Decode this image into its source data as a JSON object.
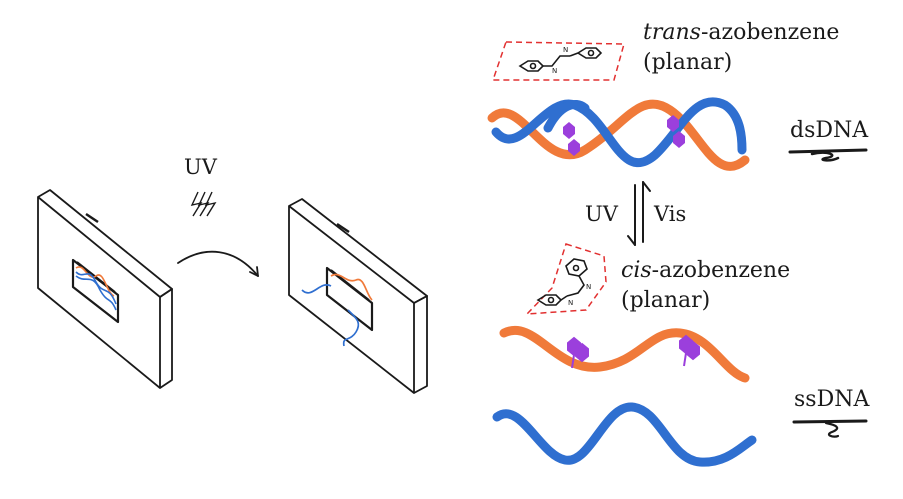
{
  "labels": {
    "uv_left": "UV",
    "trans_prefix": "trans",
    "trans_suffix": "-azobenzene",
    "trans_sub": "(planar)",
    "dsdna": "dsDNA",
    "uv_mid": "UV",
    "vis_mid": "Vis",
    "cis_prefix": "cis",
    "cis_suffix": "-azobenzene",
    "cis_sub": "(planar)",
    "ssdna": "ssDNA"
  },
  "colors": {
    "orange_strand": "#f07a3a",
    "blue_strand": "#2f6fd0",
    "azobenzene": "#9b3fdc",
    "dashed_box": "#e23030",
    "ink": "#1a1a1a"
  }
}
